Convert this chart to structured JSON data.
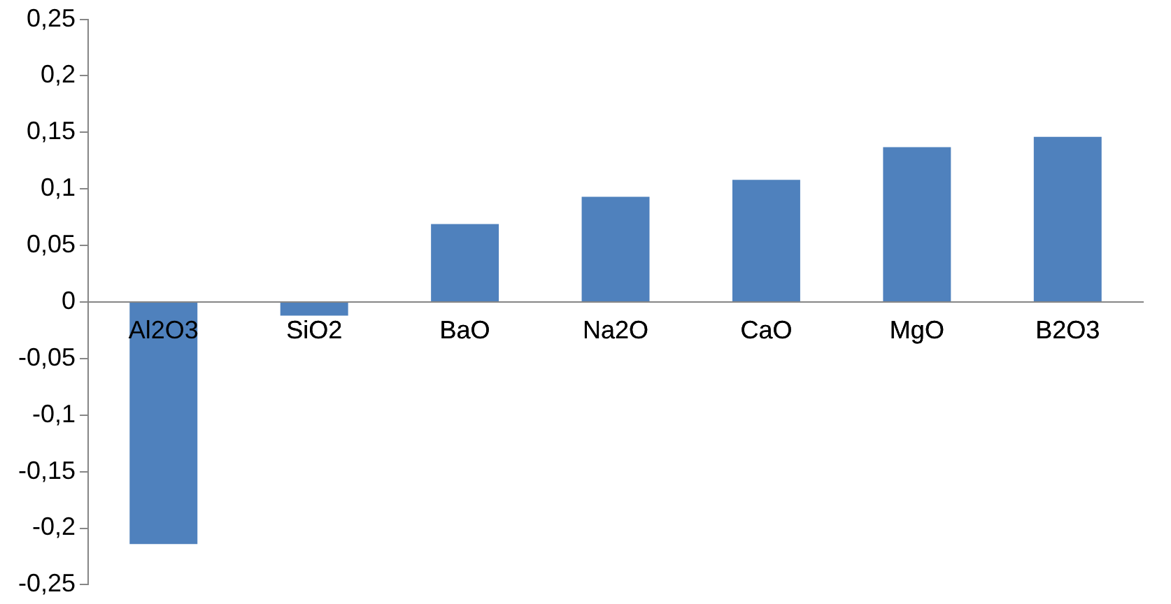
{
  "chart_data": {
    "type": "bar",
    "categories": [
      "Al2O3",
      "SiO2",
      "BaO",
      "Na2O",
      "CaO",
      "MgO",
      "B2O3"
    ],
    "values": [
      -0.214,
      -0.012,
      0.069,
      0.093,
      0.108,
      0.137,
      0.146
    ],
    "color": "#4f81bd",
    "ylim": [
      -0.25,
      0.25
    ],
    "yticks": [
      {
        "value": -0.25,
        "label": "-0,25"
      },
      {
        "value": -0.2,
        "label": "-0,2"
      },
      {
        "value": -0.15,
        "label": "-0,15"
      },
      {
        "value": -0.1,
        "label": "-0,1"
      },
      {
        "value": -0.05,
        "label": "-0,05"
      },
      {
        "value": 0,
        "label": "0"
      },
      {
        "value": 0.05,
        "label": "0,05"
      },
      {
        "value": 0.1,
        "label": "0,1"
      },
      {
        "value": 0.15,
        "label": "0,15"
      },
      {
        "value": 0.2,
        "label": "0,2"
      },
      {
        "value": 0.25,
        "label": "0,25"
      }
    ],
    "grid": false,
    "legend": false
  }
}
